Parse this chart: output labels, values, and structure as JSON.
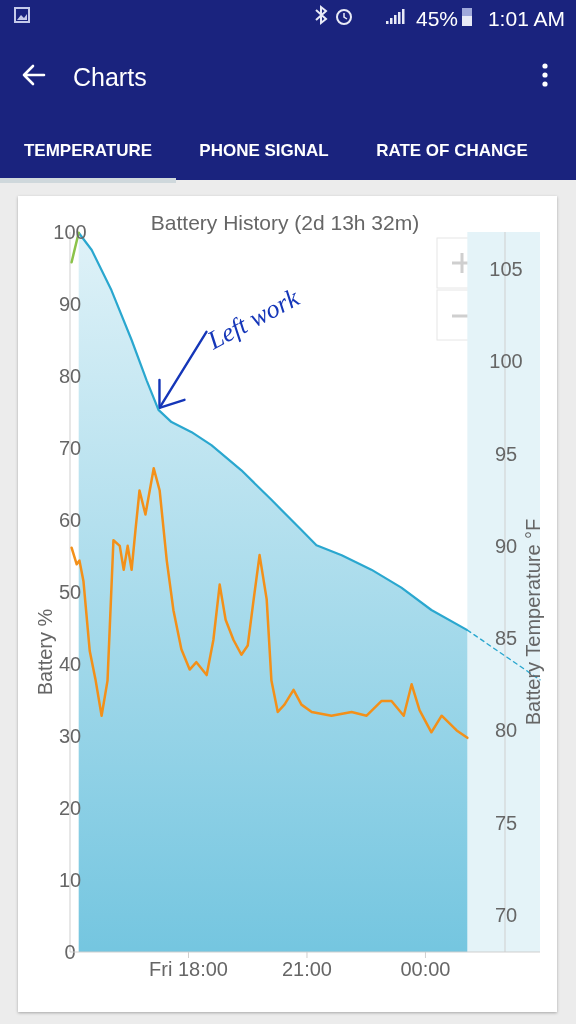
{
  "chart_data": {
    "type": "area",
    "title": "Battery History (2d 13h 32m)",
    "ylabel": "Battery %",
    "y2label": "Battery Temperature °F",
    "xlim": [
      15,
      26.9
    ],
    "xticks": [
      {
        "value": 18,
        "label": "Fri 18:00"
      },
      {
        "value": 21,
        "label": "21:00"
      },
      {
        "value": 24,
        "label": "00:00"
      }
    ],
    "ylim": [
      0,
      100
    ],
    "yticks": [
      0,
      10,
      20,
      30,
      40,
      50,
      60,
      70,
      80,
      90,
      100
    ],
    "y2lim": [
      68,
      107
    ],
    "y2ticks": [
      70,
      75,
      80,
      85,
      90,
      95,
      100,
      105
    ],
    "grid": false,
    "series": [
      {
        "color": "#2aa7cf",
        "x": [
          15.22,
          15.55,
          16.05,
          16.56,
          16.94,
          17.24,
          17.57,
          18.08,
          18.58,
          19.34,
          20.1,
          20.86,
          21.24,
          21.88,
          22.63,
          23.39,
          24.15,
          25.06
        ],
        "values": [
          99.9,
          97.5,
          91.9,
          85,
          79.4,
          75.3,
          73.6,
          72.2,
          70.4,
          66.9,
          62.8,
          58.6,
          56.5,
          55.1,
          53.1,
          50.6,
          47.5,
          44.7
        ]
      },
      {
        "type": "line",
        "color": "#8bc34a",
        "x": [
          15.04,
          15.22
        ],
        "values": [
          95.8,
          99.9
        ]
      },
      {
        "type": "line",
        "color": "#2aa7cf",
        "line_style": "dashed",
        "x": [
          25.06,
          26.9
        ],
        "values": [
          44.7,
          37.8
        ]
      },
      {
        "type": "line",
        "color": "#f39019",
        "axis": "y2",
        "x": [
          15.04,
          15.17,
          15.24,
          15.34,
          15.5,
          15.65,
          15.8,
          15.95,
          16.1,
          16.26,
          16.36,
          16.46,
          16.56,
          16.66,
          16.76,
          16.91,
          17.12,
          17.27,
          17.45,
          17.62,
          17.82,
          18.03,
          18.2,
          18.46,
          18.63,
          18.79,
          18.94,
          19.14,
          19.34,
          19.5,
          19.65,
          19.8,
          19.98,
          20.1,
          20.26,
          20.43,
          20.66,
          20.86,
          21.12,
          21.62,
          22.13,
          22.51,
          22.89,
          23.14,
          23.45,
          23.65,
          23.85,
          24.15,
          24.41,
          24.79,
          25.06
        ],
        "values": [
          89.9,
          89,
          89.2,
          88.1,
          84.3,
          82.7,
          80.8,
          82.7,
          90.3,
          90,
          88.7,
          90,
          88.7,
          90.9,
          93,
          91.7,
          94.2,
          93,
          89.2,
          86.5,
          84.4,
          83.3,
          83.7,
          83,
          84.9,
          87.9,
          86,
          84.9,
          84.1,
          84.6,
          87.1,
          89.5,
          87.1,
          82.7,
          81,
          81.4,
          82.2,
          81.4,
          81,
          80.8,
          81,
          80.8,
          81.6,
          81.6,
          80.8,
          82.5,
          81.1,
          79.9,
          80.8,
          80,
          79.6
        ]
      }
    ],
    "bands": [
      {
        "axis": "x",
        "from": 25.06,
        "to": 26.9,
        "color": "#e4f3f8"
      }
    ],
    "annotations": [
      {
        "text": "Left work",
        "x": 17.24,
        "y": 75.3
      },
      "Charts",
      "TEMPERATURE",
      "PHONE SIGNAL",
      "RATE OF CHANGE",
      "45%",
      "1:01 AM"
    ]
  }
}
